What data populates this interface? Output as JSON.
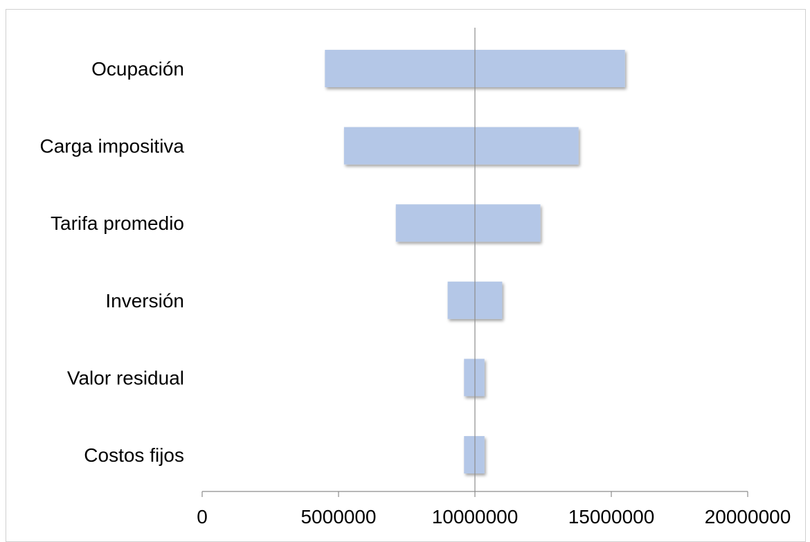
{
  "chart_data": {
    "type": "bar",
    "orientation": "horizontal",
    "subtype": "tornado",
    "title": "",
    "xlabel": "",
    "ylabel": "",
    "baseline": 10000000,
    "xlim": [
      0,
      20000000
    ],
    "x_ticks": [
      0,
      5000000,
      10000000,
      15000000,
      20000000
    ],
    "x_tick_labels": [
      "0",
      "5000000",
      "10000000",
      "15000000",
      "20000000"
    ],
    "categories": [
      "Ocupación",
      "Carga impositiva",
      "Tarifa promedio",
      "Inversión",
      "Valor residual",
      "Costos fijos"
    ],
    "low": [
      4500000,
      5200000,
      7100000,
      9000000,
      9600000,
      9600000
    ],
    "high": [
      15500000,
      13800000,
      12400000,
      11000000,
      10350000,
      10350000
    ],
    "bar_color": "#b4c7e7",
    "grid": false,
    "legend": "none"
  }
}
